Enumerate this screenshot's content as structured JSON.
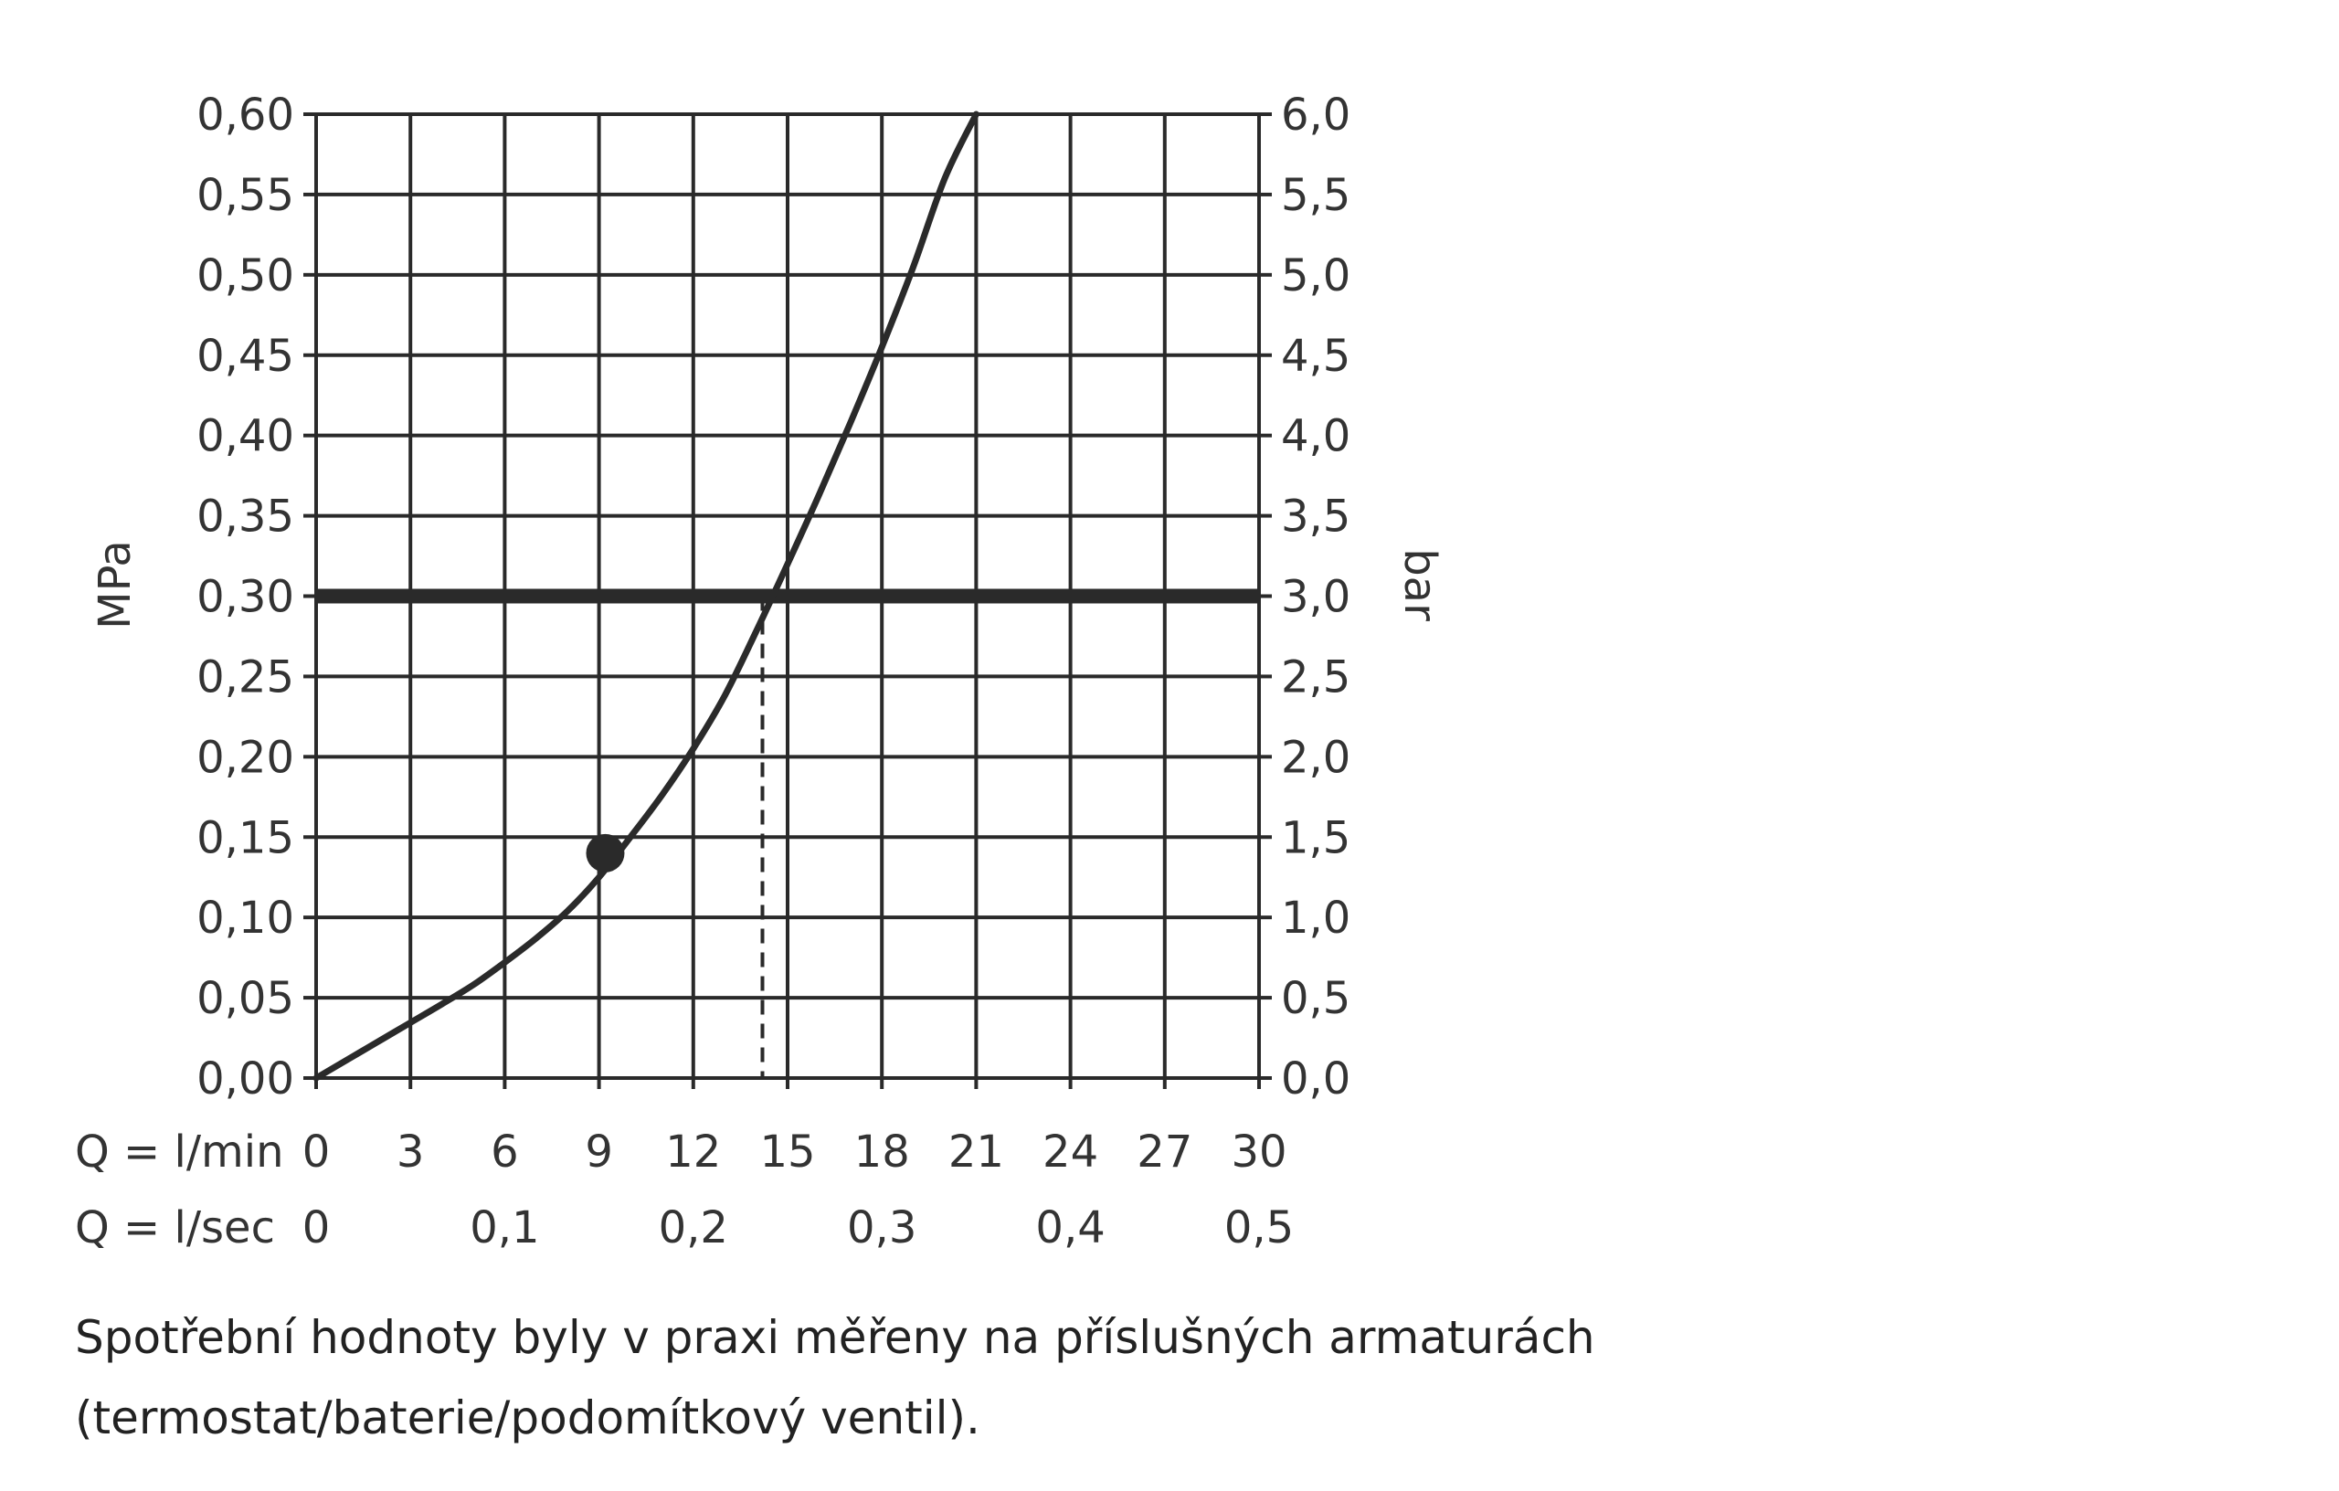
{
  "chart_data": {
    "type": "line",
    "y_left_label": "MPa",
    "y_right_label": "bar",
    "x_label_lmin": "Q = l/min",
    "x_label_lsec": "Q = l/sec",
    "xlim": [
      0,
      30
    ],
    "ylim": [
      0,
      0.6
    ],
    "grid": true,
    "y_left_ticks": [
      {
        "value": 0.0,
        "label": "0,00"
      },
      {
        "value": 0.05,
        "label": "0,05"
      },
      {
        "value": 0.1,
        "label": "0,10"
      },
      {
        "value": 0.15,
        "label": "0,15"
      },
      {
        "value": 0.2,
        "label": "0,20"
      },
      {
        "value": 0.25,
        "label": "0,25"
      },
      {
        "value": 0.3,
        "label": "0,30"
      },
      {
        "value": 0.35,
        "label": "0,35"
      },
      {
        "value": 0.4,
        "label": "0,40"
      },
      {
        "value": 0.45,
        "label": "0,45"
      },
      {
        "value": 0.5,
        "label": "0,50"
      },
      {
        "value": 0.55,
        "label": "0,55"
      },
      {
        "value": 0.6,
        "label": "0,60"
      }
    ],
    "y_right_ticks": [
      {
        "value": 0.0,
        "label": "0,0"
      },
      {
        "value": 0.05,
        "label": "0,5"
      },
      {
        "value": 0.1,
        "label": "1,0"
      },
      {
        "value": 0.15,
        "label": "1,5"
      },
      {
        "value": 0.2,
        "label": "2,0"
      },
      {
        "value": 0.25,
        "label": "2,5"
      },
      {
        "value": 0.3,
        "label": "3,0"
      },
      {
        "value": 0.35,
        "label": "3,5"
      },
      {
        "value": 0.4,
        "label": "4,0"
      },
      {
        "value": 0.45,
        "label": "4,5"
      },
      {
        "value": 0.5,
        "label": "5,0"
      },
      {
        "value": 0.55,
        "label": "5,5"
      },
      {
        "value": 0.6,
        "label": "6,0"
      }
    ],
    "x_ticks_lmin": [
      {
        "value": 0,
        "label": "0"
      },
      {
        "value": 3,
        "label": "3"
      },
      {
        "value": 6,
        "label": "6"
      },
      {
        "value": 9,
        "label": "9"
      },
      {
        "value": 12,
        "label": "12"
      },
      {
        "value": 15,
        "label": "15"
      },
      {
        "value": 18,
        "label": "18"
      },
      {
        "value": 21,
        "label": "21"
      },
      {
        "value": 24,
        "label": "24"
      },
      {
        "value": 27,
        "label": "27"
      },
      {
        "value": 30,
        "label": "30"
      }
    ],
    "x_ticks_lsec": [
      {
        "value": 0,
        "label": "0"
      },
      {
        "value": 6,
        "label": "0,1"
      },
      {
        "value": 12,
        "label": "0,2"
      },
      {
        "value": 18,
        "label": "0,3"
      },
      {
        "value": 24,
        "label": "0,4"
      },
      {
        "value": 30,
        "label": "0,5"
      }
    ],
    "series": [
      {
        "x": [
          0,
          1,
          2,
          3,
          4,
          5,
          6,
          7,
          8,
          9,
          10,
          11,
          12,
          13,
          14,
          15,
          16,
          17,
          18,
          19,
          20,
          21
        ],
        "y": [
          0.0,
          0.0115,
          0.023,
          0.0345,
          0.046,
          0.058,
          0.072,
          0.087,
          0.104,
          0.125,
          0.15,
          0.176,
          0.205,
          0.238,
          0.278,
          0.32,
          0.363,
          0.408,
          0.455,
          0.505,
          0.56,
          0.6
        ]
      }
    ],
    "reference_line": {
      "y": 0.3
    },
    "marker_point": {
      "x": 9.2,
      "y": 0.14
    },
    "operating_point": {
      "x": 14.2,
      "y": 0.3
    }
  },
  "caption": "Spotřební hodnoty byly v praxi měřeny na příslušných armaturách (termostat/baterie/podomítkový ventil)."
}
